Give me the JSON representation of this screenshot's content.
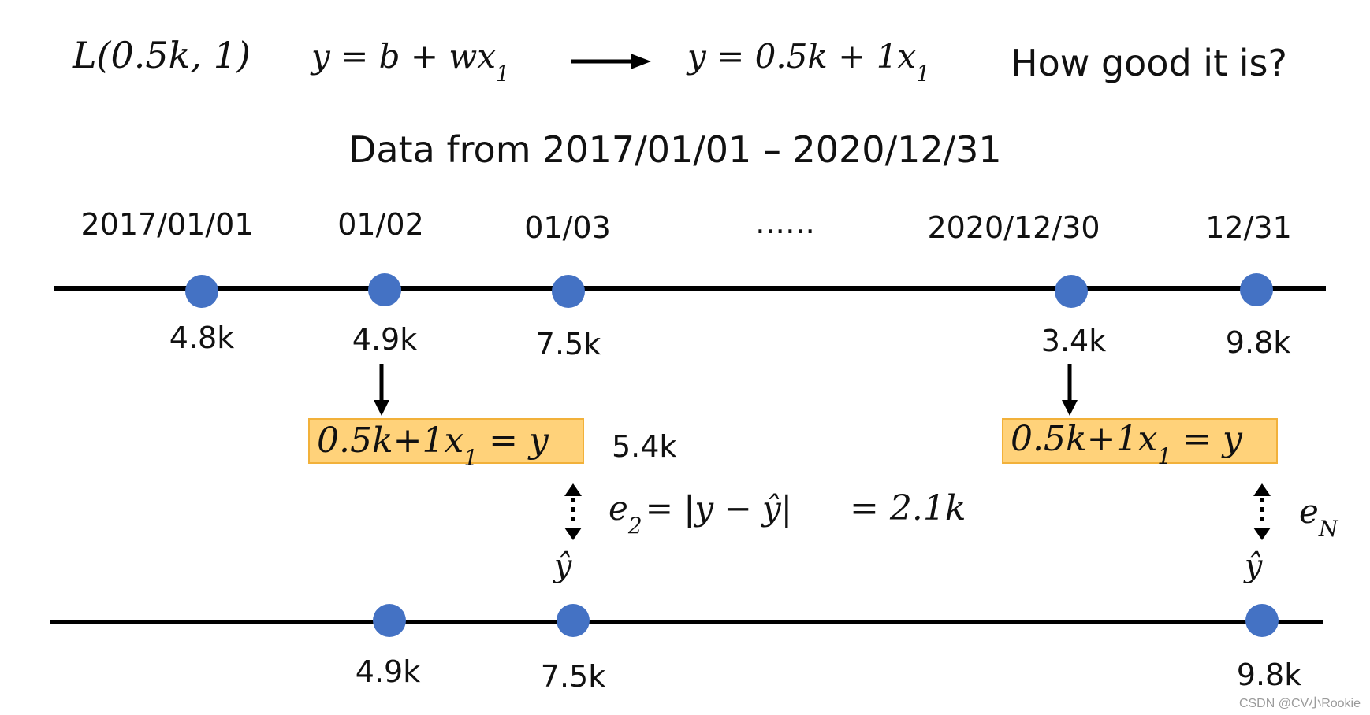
{
  "header": {
    "loss_expr": "L(0.5k, 1)",
    "model_expr": "y = b + wx",
    "model_sub": "1",
    "instance_expr": "y = 0.5k + 1x",
    "instance_sub": "1",
    "question": "How good it is?"
  },
  "data_range": "Data from 2017/01/01 – 2020/12/31",
  "top_timeline": {
    "dates": [
      "2017/01/01",
      "01/02",
      "01/03",
      "……",
      "2020/12/30",
      "12/31"
    ],
    "values": [
      "4.8k",
      "4.9k",
      "7.5k",
      "3.4k",
      "9.8k"
    ]
  },
  "prediction_boxes": [
    {
      "expr": "0.5k+1x",
      "sub": "1",
      "rhs": " = y"
    },
    {
      "expr": "0.5k+1x",
      "sub": "1",
      "rhs": " = y"
    }
  ],
  "predicted_value": "5.4k",
  "error_2": {
    "label": "e",
    "sub": "2",
    "expr": "= |y − ŷ|",
    "result": "= 2.1k"
  },
  "error_n": {
    "label": "e",
    "sub": "N"
  },
  "yhat_labels": [
    "ŷ",
    "ŷ"
  ],
  "bottom_timeline": {
    "values": [
      "4.9k",
      "7.5k",
      "9.8k"
    ]
  },
  "watermark": "CSDN @CV小Rookie",
  "colors": {
    "dot": "#4472C4",
    "box_fill": "#FFD27A",
    "box_stroke": "#F2B13A",
    "line": "#000000"
  }
}
